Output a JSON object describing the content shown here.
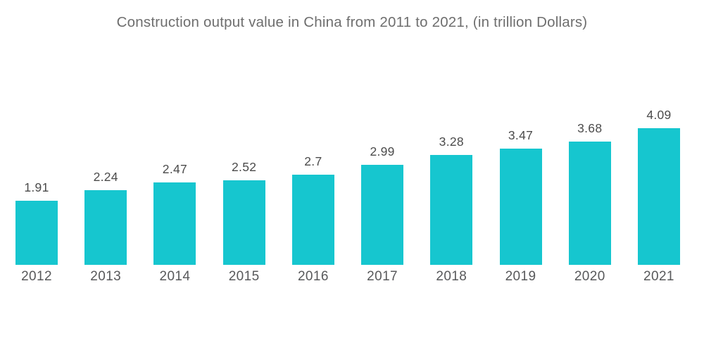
{
  "title": "Construction output value in China from 2011 to 2021, (in trillion Dollars)",
  "colors": {
    "background": "#ffffff",
    "bar": "#16c6cf",
    "title_text": "#6e6e6e",
    "value_label_text": "#4b4b4b",
    "axis_tick_text": "#58595b"
  },
  "chart_data": {
    "type": "bar",
    "title": "Construction output value in China from 2011 to 2021, (in trillion Dollars)",
    "categories": [
      "2012",
      "2013",
      "2014",
      "2015",
      "2016",
      "2017",
      "2018",
      "2019",
      "2020",
      "2021"
    ],
    "values": [
      1.91,
      2.24,
      2.47,
      2.52,
      2.7,
      2.99,
      3.28,
      3.47,
      3.68,
      4.09
    ],
    "value_labels": [
      "1.91",
      "2.24",
      "2.47",
      "2.52",
      "2.7",
      "2.99",
      "3.28",
      "3.47",
      "3.68",
      "4.09"
    ],
    "xlabel": "",
    "ylabel": "",
    "ylim": [
      0,
      4.3
    ],
    "grid": false,
    "axes_visible": false,
    "legend": false,
    "data_labels_position": "above-bars",
    "bar_color": "#16c6cf"
  }
}
